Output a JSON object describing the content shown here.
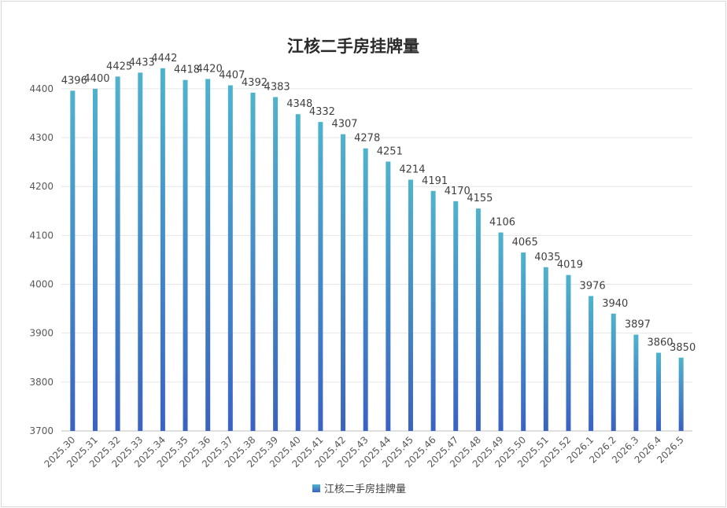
{
  "chart_data": {
    "type": "bar",
    "title": "江核二手房挂牌量",
    "xlabel": "",
    "ylabel": "",
    "ylim": [
      3700,
      4440
    ],
    "yticks": [
      3700,
      3800,
      3900,
      4000,
      4100,
      4200,
      4300,
      4400
    ],
    "grid": true,
    "legend": "bottom",
    "categories": [
      "2025.30",
      "2025.31",
      "2025.32",
      "2025.33",
      "2025.34",
      "2025.35",
      "2025.36",
      "2025.37",
      "2025.38",
      "2025.39",
      "2025.40",
      "2025.41",
      "2025.42",
      "2025.43",
      "2025.44",
      "2025.45",
      "2025.46",
      "2025.47",
      "2025.48",
      "2025.49",
      "2025.50",
      "2025.51",
      "2025.52",
      "2026.1",
      "2026.2",
      "2026.3",
      "2026.4",
      "2026.5"
    ],
    "series": [
      {
        "name": "江核二手房挂牌量",
        "values": [
          4396,
          4400,
          4425,
          4433,
          4442,
          4418,
          4420,
          4407,
          4392,
          4383,
          4348,
          4332,
          4307,
          4278,
          4251,
          4214,
          4191,
          4170,
          4155,
          4106,
          4065,
          4035,
          4019,
          3976,
          3940,
          3897,
          3860,
          3850
        ]
      }
    ],
    "colors": {
      "bar_top": "#4fb3cc",
      "bar_bottom": "#3a62c2",
      "grid": "#e6e6e6",
      "axis": "#bfbfbf"
    }
  }
}
